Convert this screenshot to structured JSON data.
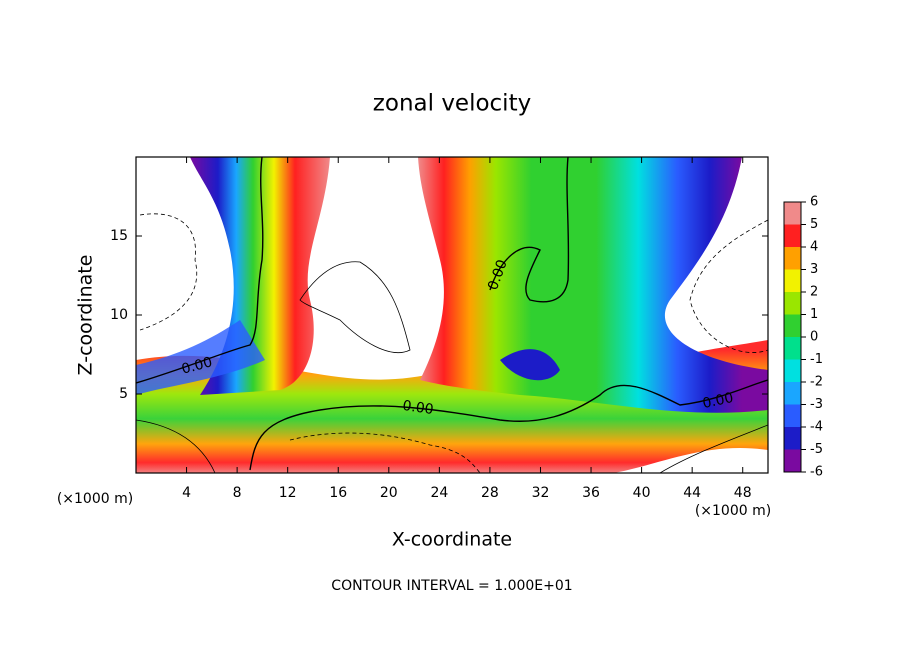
{
  "chart_data": {
    "type": "contour",
    "title": "zonal velocity",
    "x_label": "X-coordinate",
    "y_label": "Z-coordinate",
    "x_unit_left": "(×1000 m)",
    "x_unit_right": "(×1000 m)",
    "footer": "CONTOUR INTERVAL = 1.000E+01",
    "contour_labels": [
      "0.00",
      "0.00",
      "0.00",
      "0.00",
      "0.00"
    ],
    "xlim": [
      0,
      50
    ],
    "xticks": [
      4,
      8,
      12,
      16,
      20,
      24,
      28,
      32,
      36,
      40,
      44,
      48
    ],
    "ylim": [
      0,
      20
    ],
    "yticks": [
      5,
      10,
      15
    ],
    "colorbar": {
      "levels": [
        -6,
        -5,
        -4,
        -3,
        -2,
        -1,
        0,
        1,
        2,
        3,
        4,
        5,
        6
      ],
      "colors": [
        "#7a0aa0",
        "#1c1cc8",
        "#2a5cff",
        "#1aa6ff",
        "#00e0e0",
        "#00e08c",
        "#30d030",
        "#9ae600",
        "#f2f200",
        "#ffa000",
        "#ff2020",
        "#f08a8a"
      ]
    }
  }
}
